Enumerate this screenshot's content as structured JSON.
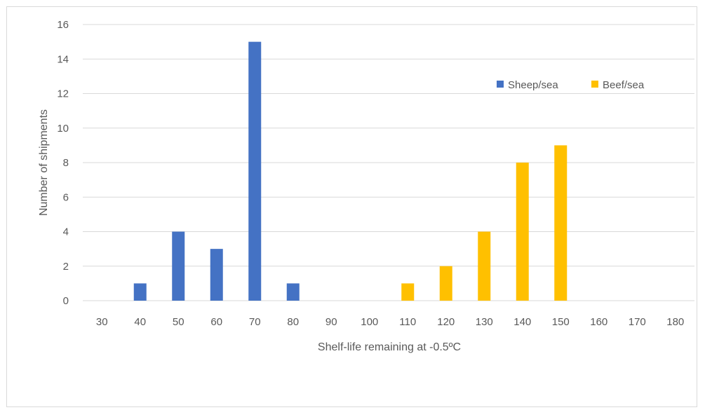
{
  "chart_data": {
    "type": "bar",
    "categories": [
      "30",
      "40",
      "50",
      "60",
      "70",
      "80",
      "90",
      "100",
      "110",
      "120",
      "130",
      "140",
      "150",
      "160",
      "170",
      "180"
    ],
    "series": [
      {
        "name": "Sheep/sea",
        "color": "#4472c4",
        "values": [
          0,
          1,
          4,
          3,
          15,
          1,
          0,
          0,
          0,
          0,
          0,
          0,
          0,
          0,
          0,
          0
        ]
      },
      {
        "name": "Beef/sea",
        "color": "#ffc000",
        "values": [
          0,
          0,
          0,
          0,
          0,
          0,
          0,
          0,
          1,
          2,
          4,
          8,
          9,
          0,
          0,
          0
        ]
      }
    ],
    "ylim": [
      0,
      16
    ],
    "yticks": [
      "0",
      "2",
      "4",
      "6",
      "8",
      "10",
      "12",
      "14",
      "16"
    ],
    "xlabel": "Shelf-life remaining at -0.5ºC",
    "ylabel": "Number of shipments",
    "grid": true,
    "legend_position": "top-right"
  }
}
